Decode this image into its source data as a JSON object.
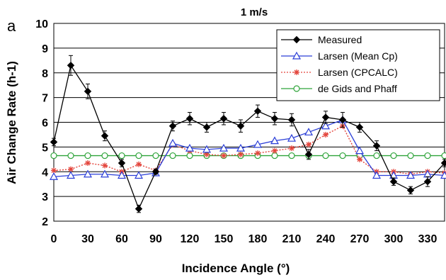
{
  "chart_data": {
    "type": "line",
    "title": "1 m/s",
    "panel_label": "a",
    "xlabel": "Incidence Angle (°)",
    "ylabel": "Air Change Rate (h-1)",
    "xlim": [
      0,
      345
    ],
    "ylim": [
      2,
      10
    ],
    "xticks": [
      0,
      30,
      60,
      90,
      120,
      150,
      180,
      210,
      240,
      270,
      300,
      330
    ],
    "yticks": [
      2,
      3,
      4,
      5,
      6,
      7,
      8,
      9,
      10
    ],
    "grid": "horizontal",
    "legend_position": "top-right",
    "x": [
      0,
      15,
      30,
      45,
      60,
      75,
      90,
      105,
      120,
      135,
      150,
      165,
      180,
      195,
      210,
      225,
      240,
      255,
      270,
      285,
      300,
      315,
      330,
      345
    ],
    "series": [
      {
        "name": "Measured",
        "color": "#000000",
        "marker": "diamond",
        "line": "solid",
        "error_bars": true,
        "values": [
          5.2,
          8.3,
          7.25,
          5.45,
          4.35,
          2.5,
          4.0,
          5.85,
          6.15,
          5.8,
          6.15,
          5.85,
          6.45,
          6.15,
          6.1,
          4.7,
          6.2,
          6.1,
          5.8,
          5.05,
          3.6,
          3.25,
          3.6,
          4.35
        ],
        "errors": [
          0.15,
          0.4,
          0.3,
          0.2,
          0.15,
          0.15,
          0.1,
          0.2,
          0.25,
          0.2,
          0.25,
          0.25,
          0.25,
          0.25,
          0.25,
          0.2,
          0.25,
          0.3,
          0.2,
          0.2,
          0.15,
          0.15,
          0.2,
          0.15
        ]
      },
      {
        "name": "Larsen (Mean Cp)",
        "color": "#2b3fd8",
        "marker": "triangle",
        "line": "solid",
        "values": [
          3.8,
          3.85,
          3.9,
          3.9,
          3.85,
          3.85,
          3.95,
          5.15,
          4.95,
          4.9,
          4.95,
          4.95,
          5.1,
          5.25,
          5.35,
          5.6,
          5.85,
          6.1,
          4.85,
          3.85,
          3.85,
          3.85,
          3.9,
          3.85
        ]
      },
      {
        "name": "Larsen (CPCALC)",
        "color": "#e3443b",
        "marker": "star",
        "line": "dotted",
        "values": [
          4.05,
          4.1,
          4.35,
          4.25,
          4.0,
          4.3,
          4.05,
          5.1,
          4.85,
          4.7,
          4.65,
          4.7,
          4.75,
          4.85,
          4.95,
          5.1,
          5.5,
          5.85,
          4.5,
          4.0,
          4.0,
          3.9,
          4.0,
          3.95
        ]
      },
      {
        "name": "de Gids and Phaff",
        "color": "#2fa43a",
        "marker": "circle",
        "line": "solid",
        "values": [
          4.65,
          4.65,
          4.65,
          4.65,
          4.65,
          4.65,
          4.65,
          4.65,
          4.65,
          4.65,
          4.65,
          4.65,
          4.65,
          4.65,
          4.65,
          4.65,
          4.65,
          4.65,
          4.65,
          4.65,
          4.65,
          4.65,
          4.65,
          4.65
        ]
      }
    ]
  }
}
